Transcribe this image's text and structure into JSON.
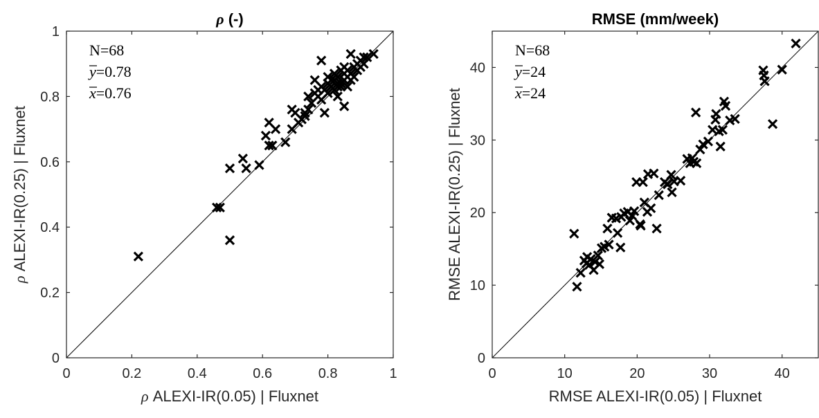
{
  "chart_data": [
    {
      "type": "scatter",
      "title_symbol": "ρ",
      "title": "(-)",
      "xlabel_symbol": "ρ",
      "xlabel": "ALEXI-IR(0.05) | Fluxnet",
      "ylabel_symbol": "ρ",
      "ylabel": "ALEXI-IR(0.25) | Fluxnet",
      "xlim": [
        0,
        1
      ],
      "ylim": [
        0,
        1
      ],
      "xticks": [
        0,
        0.2,
        0.4,
        0.6,
        0.8,
        1
      ],
      "yticks": [
        0,
        0.2,
        0.4,
        0.6,
        0.8,
        1
      ],
      "xtick_labels": [
        "0",
        "0.2",
        "0.4",
        "0.6",
        "0.8",
        "1"
      ],
      "ytick_labels": [
        "0",
        "0.2",
        "0.4",
        "0.6",
        "0.8",
        "1"
      ],
      "reference_line": "y = x",
      "grid": false,
      "annotations": [
        {
          "symbol": "",
          "text": "N=68"
        },
        {
          "symbol": "y",
          "text": "=0.78"
        },
        {
          "symbol": "x",
          "text": "=0.76"
        }
      ],
      "marker_color": "#000000",
      "points": [
        [
          0.22,
          0.31
        ],
        [
          0.46,
          0.46
        ],
        [
          0.47,
          0.46
        ],
        [
          0.5,
          0.36
        ],
        [
          0.5,
          0.58
        ],
        [
          0.54,
          0.61
        ],
        [
          0.55,
          0.58
        ],
        [
          0.59,
          0.59
        ],
        [
          0.61,
          0.68
        ],
        [
          0.62,
          0.72
        ],
        [
          0.62,
          0.65
        ],
        [
          0.63,
          0.65
        ],
        [
          0.64,
          0.7
        ],
        [
          0.67,
          0.66
        ],
        [
          0.69,
          0.7
        ],
        [
          0.69,
          0.76
        ],
        [
          0.7,
          0.75
        ],
        [
          0.71,
          0.72
        ],
        [
          0.72,
          0.73
        ],
        [
          0.73,
          0.75
        ],
        [
          0.74,
          0.76
        ],
        [
          0.74,
          0.8
        ],
        [
          0.75,
          0.78
        ],
        [
          0.76,
          0.81
        ],
        [
          0.77,
          0.8
        ],
        [
          0.78,
          0.79
        ],
        [
          0.77,
          0.82
        ],
        [
          0.78,
          0.91
        ],
        [
          0.79,
          0.75
        ],
        [
          0.8,
          0.84
        ],
        [
          0.8,
          0.86
        ],
        [
          0.81,
          0.83
        ],
        [
          0.82,
          0.85
        ],
        [
          0.82,
          0.82
        ],
        [
          0.83,
          0.84
        ],
        [
          0.83,
          0.8
        ],
        [
          0.83,
          0.86
        ],
        [
          0.84,
          0.83
        ],
        [
          0.84,
          0.84
        ],
        [
          0.85,
          0.87
        ],
        [
          0.85,
          0.85
        ],
        [
          0.85,
          0.77
        ],
        [
          0.86,
          0.86
        ],
        [
          0.86,
          0.88
        ],
        [
          0.87,
          0.87
        ],
        [
          0.87,
          0.93
        ],
        [
          0.88,
          0.89
        ],
        [
          0.89,
          0.88
        ],
        [
          0.89,
          0.9
        ],
        [
          0.9,
          0.91
        ],
        [
          0.91,
          0.9
        ],
        [
          0.91,
          0.92
        ],
        [
          0.92,
          0.92
        ],
        [
          0.94,
          0.93
        ],
        [
          0.76,
          0.85
        ],
        [
          0.79,
          0.82
        ],
        [
          0.81,
          0.85
        ],
        [
          0.84,
          0.88
        ],
        [
          0.88,
          0.86
        ],
        [
          0.82,
          0.87
        ],
        [
          0.73,
          0.74
        ],
        [
          0.8,
          0.81
        ],
        [
          0.86,
          0.83
        ],
        [
          0.83,
          0.83
        ],
        [
          0.85,
          0.89
        ],
        [
          0.87,
          0.85
        ],
        [
          0.78,
          0.83
        ],
        [
          0.9,
          0.89
        ]
      ]
    },
    {
      "type": "scatter",
      "title_symbol": "",
      "title": "RMSE (mm/week)",
      "xlabel_symbol": "",
      "xlabel": "RMSE ALEXI-IR(0.05) | Fluxnet",
      "ylabel_symbol": "",
      "ylabel": "RMSE ALEXI-IR(0.25) | Fluxnet",
      "xlim": [
        0,
        45
      ],
      "ylim": [
        0,
        45
      ],
      "xticks": [
        0,
        10,
        20,
        30,
        40
      ],
      "yticks": [
        0,
        10,
        20,
        30,
        40
      ],
      "xtick_labels": [
        "0",
        "10",
        "20",
        "30",
        "40"
      ],
      "ytick_labels": [
        "0",
        "10",
        "20",
        "30",
        "40"
      ],
      "reference_line": "y = x",
      "grid": false,
      "annotations": [
        {
          "symbol": "",
          "text": "N=68"
        },
        {
          "symbol": "y",
          "text": "=24"
        },
        {
          "symbol": "x",
          "text": "=24"
        }
      ],
      "marker_color": "#000000",
      "points": [
        [
          11.3,
          17.1
        ],
        [
          11.7,
          9.8
        ],
        [
          12.2,
          11.7
        ],
        [
          12.7,
          13.4
        ],
        [
          13.1,
          13.9
        ],
        [
          13.4,
          12.8
        ],
        [
          13.6,
          13.6
        ],
        [
          14.0,
          12.1
        ],
        [
          14.2,
          13.2
        ],
        [
          14.6,
          14.1
        ],
        [
          14.8,
          12.9
        ],
        [
          15.1,
          15.1
        ],
        [
          15.5,
          15.3
        ],
        [
          15.9,
          17.8
        ],
        [
          16.1,
          15.6
        ],
        [
          16.5,
          19.3
        ],
        [
          17.1,
          19.2
        ],
        [
          17.3,
          17.2
        ],
        [
          17.7,
          15.2
        ],
        [
          18.2,
          19.9
        ],
        [
          18.7,
          20.1
        ],
        [
          19.0,
          18.9
        ],
        [
          19.3,
          19.6
        ],
        [
          19.6,
          20.2
        ],
        [
          19.9,
          24.2
        ],
        [
          20.4,
          18.4
        ],
        [
          20.8,
          24.2
        ],
        [
          21.0,
          21.4
        ],
        [
          21.4,
          20.1
        ],
        [
          21.5,
          25.3
        ],
        [
          21.9,
          20.6
        ],
        [
          22.3,
          25.4
        ],
        [
          22.7,
          17.8
        ],
        [
          23.0,
          22.4
        ],
        [
          23.8,
          24.2
        ],
        [
          24.2,
          23.9
        ],
        [
          24.7,
          25.2
        ],
        [
          24.8,
          22.8
        ],
        [
          25.1,
          24.3
        ],
        [
          26.0,
          24.4
        ],
        [
          26.9,
          27.4
        ],
        [
          27.3,
          26.8
        ],
        [
          27.6,
          27.5
        ],
        [
          28.2,
          26.8
        ],
        [
          28.7,
          28.7
        ],
        [
          29.1,
          29.4
        ],
        [
          29.8,
          29.8
        ],
        [
          30.4,
          31.4
        ],
        [
          30.8,
          32.8
        ],
        [
          30.9,
          33.6
        ],
        [
          31.3,
          31.2
        ],
        [
          31.5,
          29.1
        ],
        [
          31.8,
          31.4
        ],
        [
          32.0,
          35.3
        ],
        [
          32.2,
          34.7
        ],
        [
          32.8,
          32.7
        ],
        [
          33.5,
          32.9
        ],
        [
          28.1,
          33.8
        ],
        [
          37.4,
          39.6
        ],
        [
          37.5,
          38.9
        ],
        [
          37.6,
          38.1
        ],
        [
          38.7,
          32.2
        ],
        [
          40.0,
          39.7
        ],
        [
          41.9,
          43.3
        ],
        [
          20.5,
          18.2
        ],
        [
          13.0,
          13.0
        ],
        [
          27.8,
          27.0
        ],
        [
          17.8,
          19.4
        ]
      ]
    }
  ]
}
